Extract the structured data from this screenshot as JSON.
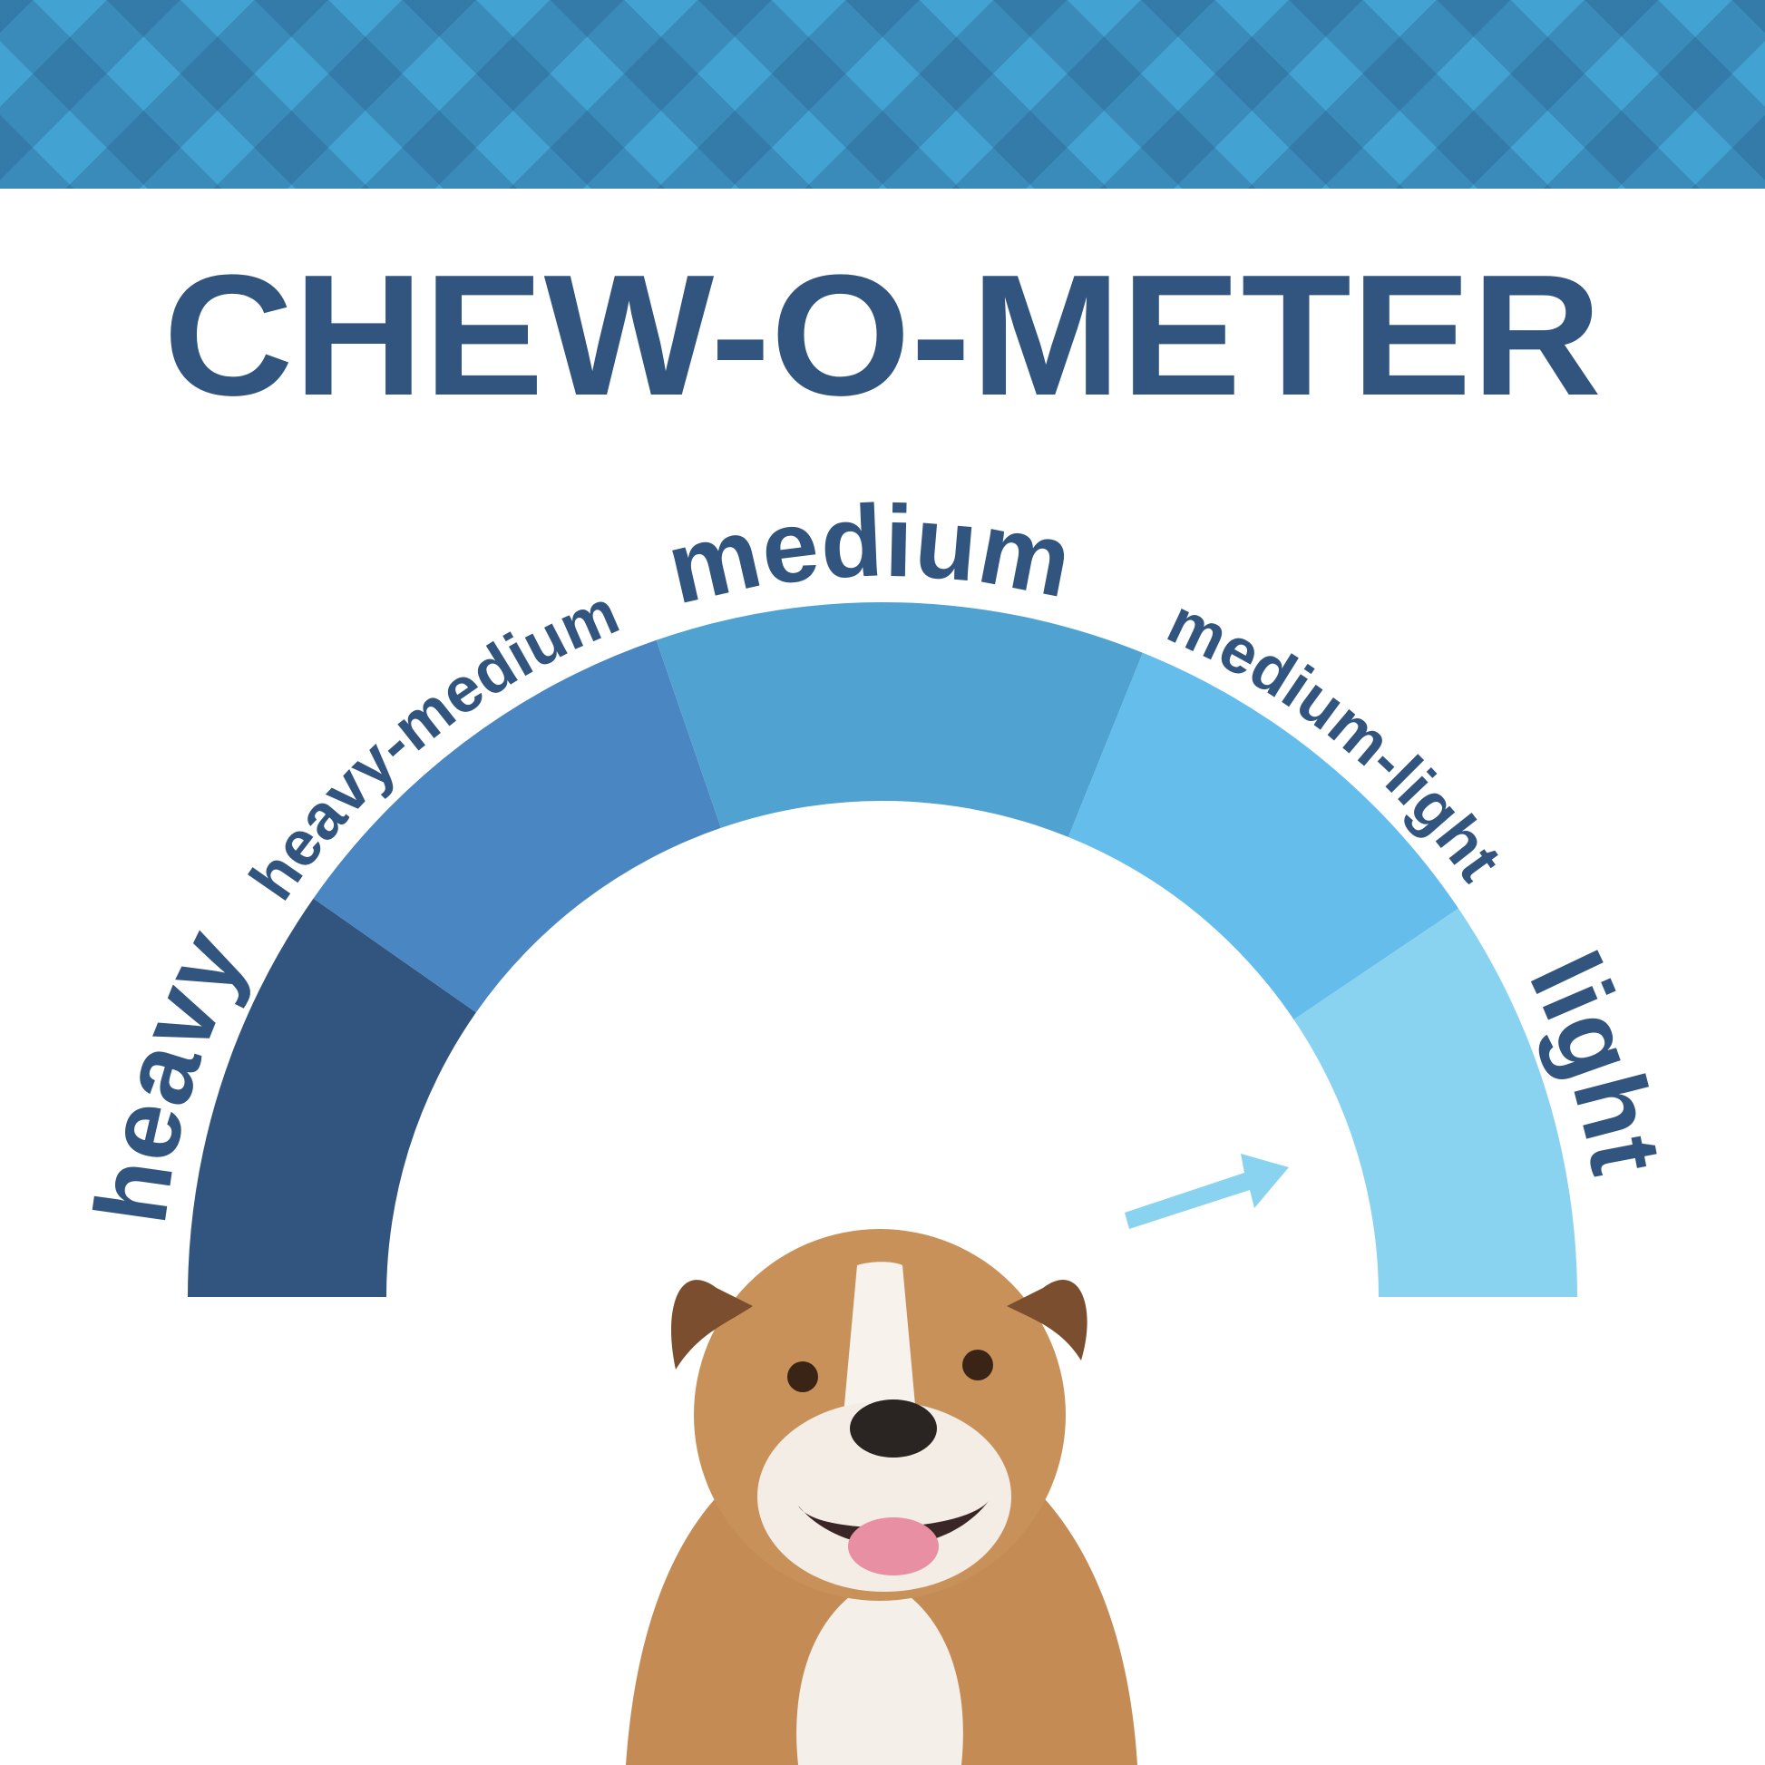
{
  "title": "CHEW-O-METER",
  "colors": {
    "title": "#32557f",
    "band": "#42a2d2",
    "arrow": "#8ad3f0"
  },
  "gauge": {
    "segments": [
      {
        "label": "heavy",
        "color": "#32557f",
        "from": 0,
        "to": 35,
        "label_at": 17,
        "size": "large"
      },
      {
        "label": "heavy-medium",
        "color": "#4a86c2",
        "from": 35,
        "to": 71,
        "label_at": 51,
        "size": "small"
      },
      {
        "label": "medium",
        "color": "#50a3d0",
        "from": 71,
        "to": 112,
        "label_at": 89,
        "size": "large"
      },
      {
        "label": "medium-light",
        "color": "#64bdeb",
        "from": 112,
        "to": 146,
        "label_at": 129,
        "size": "small"
      },
      {
        "label": "light",
        "color": "#8ad3f0",
        "from": 146,
        "to": 180,
        "label_at": 162,
        "size": "large"
      }
    ],
    "indicated": "light"
  },
  "icons": {
    "arrow": "arrow-pointer-icon",
    "dog": "bulldog-image"
  }
}
